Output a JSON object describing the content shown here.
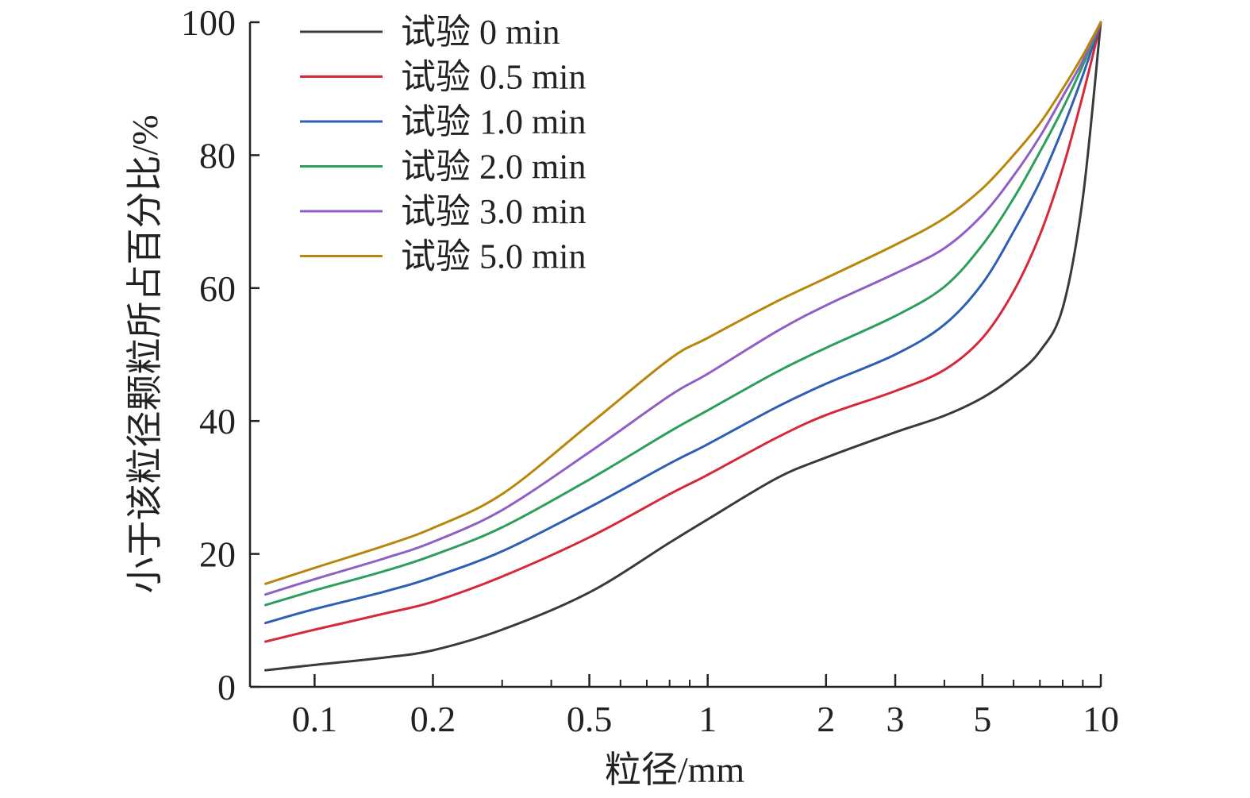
{
  "chart_data": {
    "type": "line",
    "title": "",
    "xlabel": "粒径/mm",
    "ylabel": "小于该粒径颗粒所占百分比/%",
    "x_scale": "log",
    "xlim": [
      0.075,
      10
    ],
    "ylim": [
      0,
      100
    ],
    "x_ticks": [
      {
        "value": 0.1,
        "label": "0.1"
      },
      {
        "value": 0.2,
        "label": "0.2"
      },
      {
        "value": 0.5,
        "label": "0.5"
      },
      {
        "value": 1,
        "label": "1"
      },
      {
        "value": 2,
        "label": "2"
      },
      {
        "value": 3,
        "label": "3"
      },
      {
        "value": 5,
        "label": "5"
      },
      {
        "value": 10,
        "label": "10"
      }
    ],
    "x_minor_ticks": [
      0.3,
      0.4,
      0.6,
      0.7,
      0.8,
      0.9,
      4,
      6,
      7,
      8,
      9
    ],
    "y_ticks": [
      {
        "value": 0,
        "label": "0"
      },
      {
        "value": 20,
        "label": "20"
      },
      {
        "value": 40,
        "label": "40"
      },
      {
        "value": 60,
        "label": "60"
      },
      {
        "value": 80,
        "label": "80"
      },
      {
        "value": 100,
        "label": "100"
      }
    ],
    "grid": false,
    "legend_position": "top-left",
    "x": [
      0.075,
      0.1,
      0.15,
      0.2,
      0.3,
      0.5,
      0.8,
      1,
      1.5,
      2,
      3,
      4,
      5,
      6,
      7,
      8,
      9,
      10
    ],
    "series": [
      {
        "name": "试验 0 min",
        "color": "#3a3a3a",
        "values": [
          2.5,
          3.3,
          4.4,
          5.5,
          8.6,
          14.2,
          21.7,
          25.2,
          31.4,
          34.5,
          38.3,
          40.8,
          43.5,
          46.7,
          50.5,
          57.0,
          73.5,
          100
        ]
      },
      {
        "name": "试验 0.5 min",
        "color": "#d62839",
        "values": [
          6.8,
          8.6,
          11.0,
          12.8,
          16.6,
          22.5,
          29.0,
          31.9,
          37.5,
          40.9,
          44.5,
          47.7,
          52.5,
          59.5,
          68.0,
          78.0,
          89.0,
          100
        ]
      },
      {
        "name": "试验 1.0 min",
        "color": "#2d5fb5",
        "values": [
          9.6,
          11.7,
          14.3,
          16.5,
          20.4,
          27.0,
          33.6,
          36.5,
          42.1,
          45.6,
          50.0,
          54.5,
          60.7,
          68.5,
          76.0,
          84.0,
          92.0,
          100
        ]
      },
      {
        "name": "试验 2.0 min",
        "color": "#2e9e5b",
        "values": [
          12.3,
          14.5,
          17.4,
          19.8,
          24.0,
          31.2,
          38.4,
          41.6,
          47.4,
          51.0,
          55.8,
          60.2,
          66.5,
          73.5,
          80.5,
          87.0,
          93.5,
          100
        ]
      },
      {
        "name": "试验 3.0 min",
        "color": "#8e5fc4",
        "values": [
          13.9,
          16.2,
          19.3,
          21.8,
          26.6,
          35.3,
          43.8,
          47.1,
          53.5,
          57.4,
          62.2,
          66.0,
          71.0,
          76.9,
          82.8,
          88.8,
          94.2,
          100
        ]
      },
      {
        "name": "试验 5.0 min",
        "color": "#b8860b",
        "values": [
          15.5,
          17.9,
          21.2,
          23.9,
          29.0,
          39.5,
          49.3,
          52.5,
          58.0,
          61.5,
          66.5,
          70.5,
          75.0,
          80.0,
          84.8,
          90.0,
          95.0,
          100
        ]
      }
    ]
  }
}
